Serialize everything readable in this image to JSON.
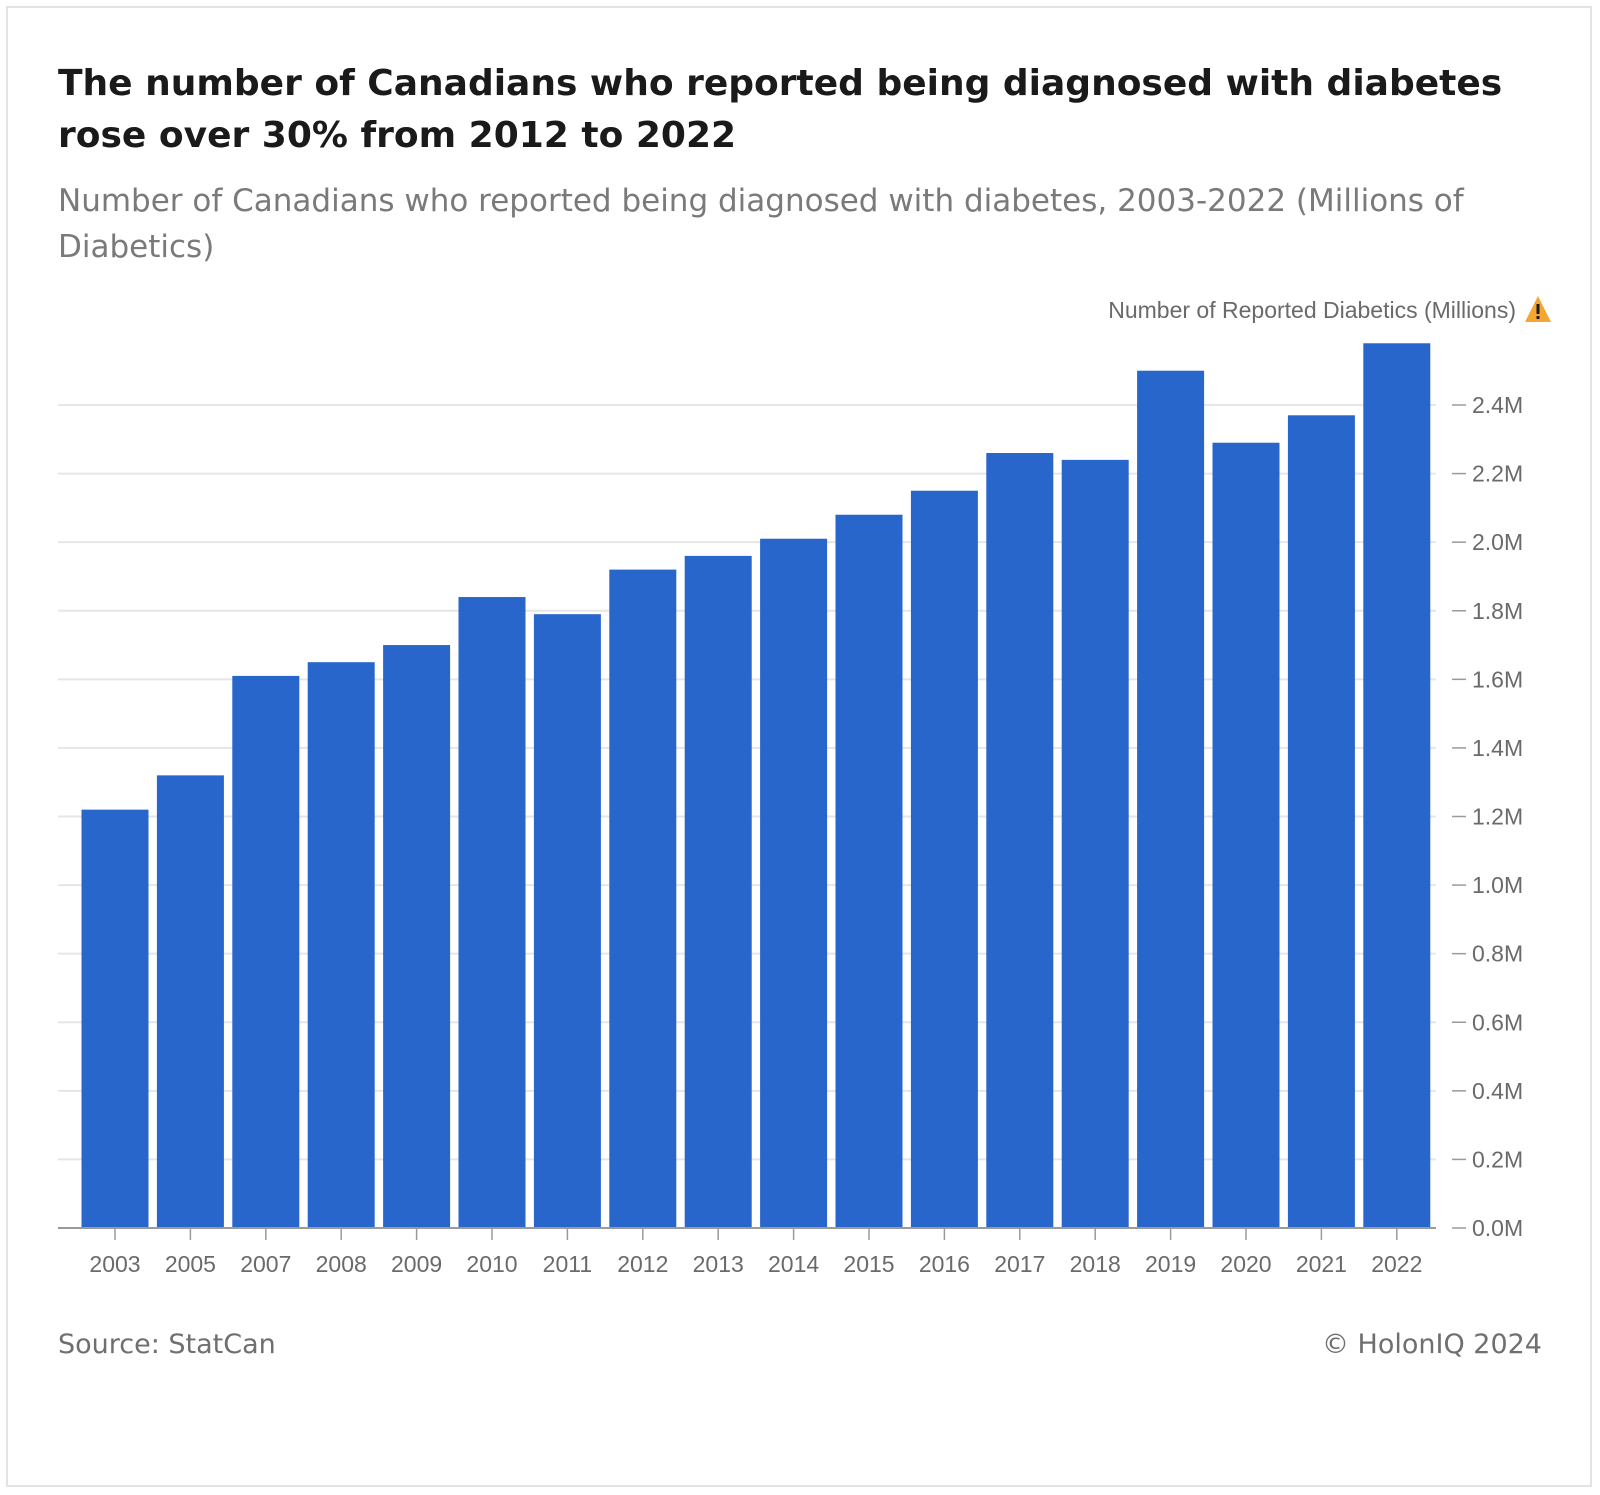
{
  "header": {
    "title": "The number of Canadians who reported being diagnosed with diabetes rose over 30% from 2012 to 2022",
    "subtitle": "Number of Canadians who reported being diagnosed with diabetes, 2003-2022 (Millions of Diabetics)"
  },
  "footer": {
    "source": "Source: StatCan",
    "copyright": "© HolonIQ 2024"
  },
  "chart_data": {
    "type": "bar",
    "categories": [
      "2003",
      "2005",
      "2007",
      "2008",
      "2009",
      "2010",
      "2011",
      "2012",
      "2013",
      "2014",
      "2015",
      "2016",
      "2017",
      "2018",
      "2019",
      "2020",
      "2021",
      "2022"
    ],
    "values": [
      1.22,
      1.32,
      1.61,
      1.65,
      1.7,
      1.84,
      1.79,
      1.92,
      1.96,
      2.01,
      2.08,
      2.15,
      2.26,
      2.24,
      2.5,
      2.29,
      2.37,
      2.58
    ],
    "ylabel": "Number of Reported Diabetics (Millions)",
    "y_axis_position": "right",
    "y_ticks": [
      0.0,
      0.2,
      0.4,
      0.6,
      0.8,
      1.0,
      1.2,
      1.4,
      1.6,
      1.8,
      2.0,
      2.2,
      2.4
    ],
    "y_tick_labels": [
      "0.0M",
      "0.2M",
      "0.4M",
      "0.6M",
      "0.8M",
      "1.0M",
      "1.2M",
      "1.4M",
      "1.6M",
      "1.8M",
      "2.0M",
      "2.2M",
      "2.4M"
    ],
    "ylim": [
      0,
      2.6
    ],
    "grid": true,
    "bar_color": "#2966cc",
    "warning_icon": "warning-triangle-icon",
    "warning_color": "#f3a731"
  }
}
